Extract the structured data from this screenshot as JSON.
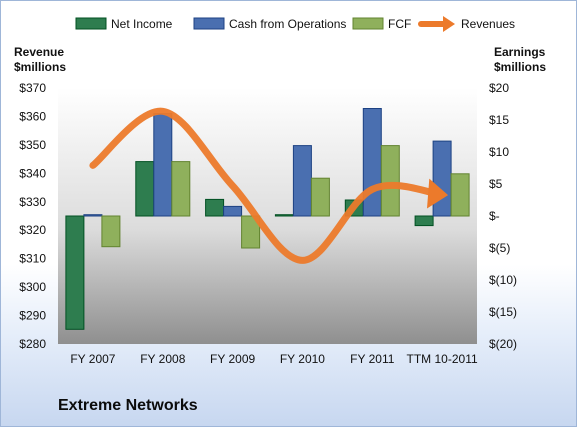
{
  "company": "Extreme Networks",
  "chart_data": {
    "type": "bar",
    "categories": [
      "FY 2007",
      "FY 2008",
      "FY 2009",
      "FY 2010",
      "FY 2011",
      "TTM 10-2011"
    ],
    "series": [
      {
        "name": "Net Income",
        "axis": "right",
        "color": "#2e7d4f",
        "values": [
          -17.7,
          8.5,
          2.6,
          0.2,
          2.5,
          -1.5
        ]
      },
      {
        "name": "Cash from Operations",
        "axis": "right",
        "color": "#4a6fb0",
        "values": [
          0.2,
          16.0,
          1.5,
          11.0,
          16.8,
          11.7
        ]
      },
      {
        "name": "FCF",
        "axis": "right",
        "color": "#8fb05c",
        "values": [
          -4.8,
          8.5,
          -5.0,
          5.9,
          11.0,
          6.6
        ]
      },
      {
        "name": "Revenues",
        "type": "line",
        "axis": "left",
        "color": "#ec7a2b",
        "values": [
          342.8,
          361.8,
          335.6,
          309.4,
          334.4,
          332.5
        ]
      }
    ],
    "left_axis": {
      "title": [
        "Revenue",
        "$millions"
      ],
      "min": 280,
      "max": 370,
      "step": 10,
      "tick_labels": [
        "$280",
        "$290",
        "$300",
        "$310",
        "$320",
        "$330",
        "$340",
        "$350",
        "$360",
        "$370"
      ]
    },
    "right_axis": {
      "title": [
        "Earnings",
        "$millions"
      ],
      "min": -20,
      "max": 20,
      "step": 5,
      "tick_labels": [
        "$(20)",
        "$(15)",
        "$(10)",
        "$(5)",
        "$-",
        "$5",
        "$10",
        "$15",
        "$20"
      ]
    },
    "legend": {
      "position": "top"
    },
    "grid": false
  }
}
